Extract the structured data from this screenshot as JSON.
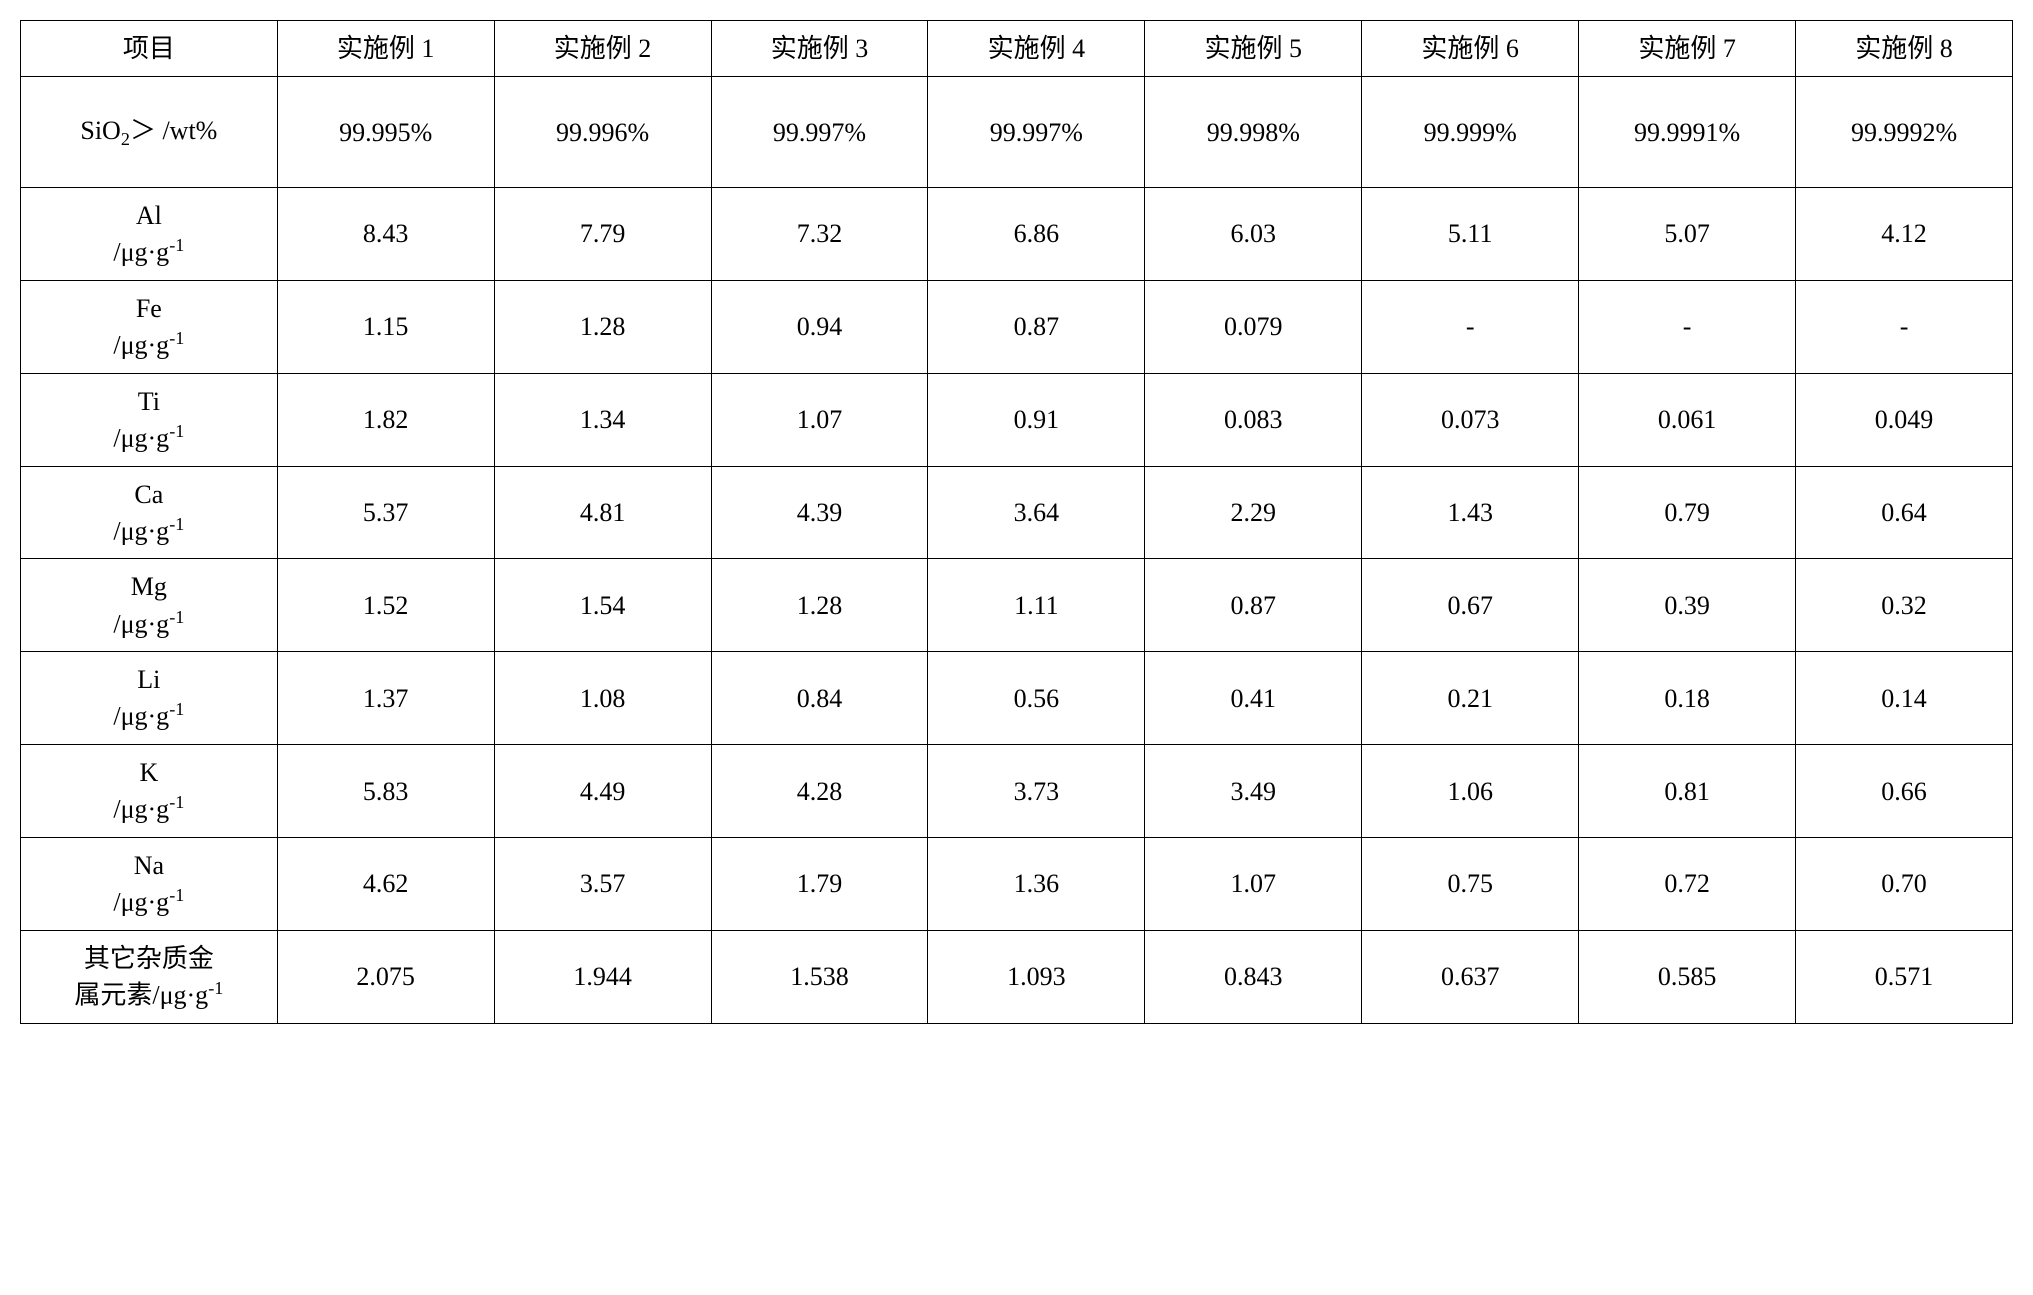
{
  "table": {
    "type": "table",
    "background_color": "#ffffff",
    "border_color": "#000000",
    "text_color": "#000000",
    "font_family": "Times New Roman / SimSun",
    "cell_fontsize_pt": 20,
    "columns": [
      {
        "key": "project",
        "label_html": "项目",
        "width_pct": 12.9,
        "align": "center"
      },
      {
        "key": "ex1",
        "label_html": "实施例 1",
        "width_pct": 10.9,
        "align": "center"
      },
      {
        "key": "ex2",
        "label_html": "实施例 2",
        "width_pct": 10.9,
        "align": "center"
      },
      {
        "key": "ex3",
        "label_html": "实施例 3",
        "width_pct": 10.9,
        "align": "center"
      },
      {
        "key": "ex4",
        "label_html": "实施例 4",
        "width_pct": 10.9,
        "align": "center"
      },
      {
        "key": "ex5",
        "label_html": "实施例 5",
        "width_pct": 10.9,
        "align": "center"
      },
      {
        "key": "ex6",
        "label_html": "实施例 6",
        "width_pct": 10.9,
        "align": "center"
      },
      {
        "key": "ex7",
        "label_html": "实施例 7",
        "width_pct": 10.9,
        "align": "center"
      },
      {
        "key": "ex8",
        "label_html": "实施例 8",
        "width_pct": 10.9,
        "align": "center"
      }
    ],
    "rows": [
      {
        "label_html": "SiO<sub>2</sub>＞  /wt%",
        "values": [
          "99.995%",
          "99.996%",
          "99.997%",
          "99.997%",
          "99.998%",
          "99.999%",
          "99.9991%",
          "99.9992%"
        ]
      },
      {
        "label_html": "Al<br>/μg·g<sup>-1</sup>",
        "values": [
          "8.43",
          "7.79",
          "7.32",
          "6.86",
          "6.03",
          "5.11",
          "5.07",
          "4.12"
        ]
      },
      {
        "label_html": "Fe<br>/μg·g<sup>-1</sup>",
        "values": [
          "1.15",
          "1.28",
          "0.94",
          "0.87",
          "0.079",
          "-",
          "-",
          "-"
        ]
      },
      {
        "label_html": "Ti<br>/μg·g<sup>-1</sup>",
        "values": [
          "1.82",
          "1.34",
          "1.07",
          "0.91",
          "0.083",
          "0.073",
          "0.061",
          "0.049"
        ]
      },
      {
        "label_html": "Ca<br>/μg·g<sup>-1</sup>",
        "values": [
          "5.37",
          "4.81",
          "4.39",
          "3.64",
          "2.29",
          "1.43",
          "0.79",
          "0.64"
        ]
      },
      {
        "label_html": "Mg<br>/μg·g<sup>-1</sup>",
        "values": [
          "1.52",
          "1.54",
          "1.28",
          "1.11",
          "0.87",
          "0.67",
          "0.39",
          "0.32"
        ]
      },
      {
        "label_html": "Li<br>/μg·g<sup>-1</sup>",
        "values": [
          "1.37",
          "1.08",
          "0.84",
          "0.56",
          "0.41",
          "0.21",
          "0.18",
          "0.14"
        ]
      },
      {
        "label_html": "K<br>/μg·g<sup>-1</sup>",
        "values": [
          "5.83",
          "4.49",
          "4.28",
          "3.73",
          "3.49",
          "1.06",
          "0.81",
          "0.66"
        ]
      },
      {
        "label_html": "Na<br>/μg·g<sup>-1</sup>",
        "values": [
          "4.62",
          "3.57",
          "1.79",
          "1.36",
          "1.07",
          "0.75",
          "0.72",
          "0.70"
        ]
      },
      {
        "label_html": "其它杂质金<br>属元素/μg·g<sup>-1</sup>",
        "values": [
          "2.075",
          "1.944",
          "1.538",
          "1.093",
          "0.843",
          "0.637",
          "0.585",
          "0.571"
        ]
      }
    ]
  }
}
